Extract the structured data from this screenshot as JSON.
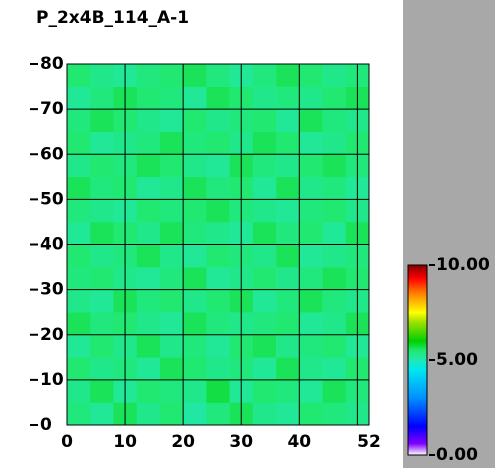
{
  "chart_data": {
    "type": "heatmap",
    "title": "P_2x4B_114_A-1",
    "xlim": [
      0,
      52
    ],
    "ylim": [
      0,
      80
    ],
    "xticks": [
      0,
      10,
      20,
      30,
      40,
      52
    ],
    "yticks": [
      0,
      10,
      20,
      30,
      40,
      50,
      60,
      70,
      80
    ],
    "xgrid": [
      10,
      20,
      30,
      40,
      50
    ],
    "grid": true,
    "z": [
      [
        5.4,
        5.2,
        5.6,
        5.3,
        5.5,
        5.1,
        5.4,
        5.6,
        5.3,
        5.2,
        5.5,
        5.4,
        5.3
      ],
      [
        5.3,
        5.6,
        5.2,
        5.5,
        5.4,
        5.3,
        5.7,
        5.2,
        5.5,
        5.4,
        5.2,
        5.6,
        5.4
      ],
      [
        5.5,
        5.3,
        5.4,
        5.2,
        5.6,
        5.5,
        5.3,
        5.4,
        5.2,
        5.6,
        5.3,
        5.2,
        5.5
      ],
      [
        5.2,
        5.5,
        5.3,
        5.6,
        5.3,
        5.4,
        5.2,
        5.5,
        5.6,
        5.3,
        5.4,
        5.5,
        5.2
      ],
      [
        5.6,
        5.4,
        5.5,
        5.3,
        5.2,
        5.6,
        5.4,
        5.3,
        5.4,
        5.5,
        5.2,
        5.3,
        5.6
      ],
      [
        5.3,
        5.2,
        5.6,
        5.4,
        5.5,
        5.3,
        5.5,
        5.6,
        5.2,
        5.4,
        5.6,
        5.4,
        5.3
      ],
      [
        5.4,
        5.5,
        5.3,
        5.2,
        5.4,
        5.6,
        5.2,
        5.3,
        5.5,
        5.3,
        5.4,
        5.6,
        5.5
      ],
      [
        5.5,
        5.3,
        5.4,
        5.6,
        5.3,
        5.2,
        5.5,
        5.4,
        5.3,
        5.6,
        5.2,
        5.3,
        5.4
      ],
      [
        5.2,
        5.6,
        5.5,
        5.3,
        5.6,
        5.4,
        5.3,
        5.2,
        5.6,
        5.4,
        5.5,
        5.2,
        5.6
      ],
      [
        5.4,
        5.3,
        5.2,
        5.5,
        5.4,
        5.5,
        5.6,
        5.4,
        5.3,
        5.2,
        5.4,
        5.5,
        5.3
      ],
      [
        5.6,
        5.4,
        5.5,
        5.2,
        5.3,
        5.6,
        5.4,
        5.5,
        5.2,
        5.6,
        5.3,
        5.4,
        5.2
      ],
      [
        5.3,
        5.5,
        5.4,
        5.6,
        5.5,
        5.3,
        5.2,
        5.6,
        5.4,
        5.3,
        5.5,
        5.6,
        5.4
      ],
      [
        5.5,
        5.2,
        5.3,
        5.4,
        5.6,
        5.4,
        5.5,
        5.3,
        5.6,
        5.5,
        5.2,
        5.3,
        5.5
      ],
      [
        5.4,
        5.6,
        5.5,
        5.3,
        5.2,
        5.5,
        5.3,
        5.4,
        5.5,
        5.2,
        5.6,
        5.4,
        5.3
      ],
      [
        5.2,
        5.4,
        5.6,
        5.5,
        5.4,
        5.2,
        5.6,
        5.5,
        5.3,
        5.4,
        5.3,
        5.5,
        5.6
      ],
      [
        5.5,
        5.3,
        5.2,
        5.4,
        5.5,
        5.6,
        5.4,
        5.2,
        5.4,
        5.6,
        5.5,
        5.3,
        5.4
      ]
    ],
    "zlim": [
      0,
      10
    ],
    "colorscale": [
      [
        0,
        "#ffffff"
      ],
      [
        0.6,
        "#8000ff"
      ],
      [
        1.5,
        "#0000ff"
      ],
      [
        3,
        "#0090ff"
      ],
      [
        4.5,
        "#00e8f0"
      ],
      [
        5,
        "#20e8b0"
      ],
      [
        5.5,
        "#20e870"
      ],
      [
        6,
        "#00d000"
      ],
      [
        7,
        "#a0e000"
      ],
      [
        7.5,
        "#ffff00"
      ],
      [
        8.5,
        "#ff8000"
      ],
      [
        9.3,
        "#ff0000"
      ],
      [
        10,
        "#800000"
      ]
    ],
    "colorbar_ticks": [
      {
        "value": 0,
        "label": "0.00"
      },
      {
        "value": 5,
        "label": "5.00"
      },
      {
        "value": 10,
        "label": "10.00"
      }
    ]
  }
}
